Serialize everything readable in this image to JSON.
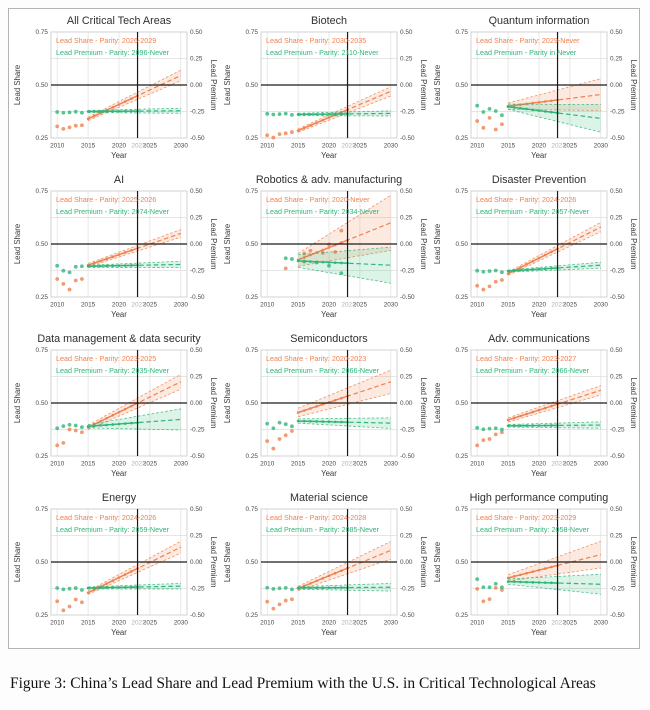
{
  "figure": {
    "caption": "Figure 3: China’s Lead Share and Lead Premium with the U.S. in Critical Technological Areas",
    "colors": {
      "share": "#ee8150",
      "premium": "#2fb579",
      "refline": "#1a1a1a",
      "grid": "#dedede",
      "plot_border": "#c8c8c8",
      "tick_text": "#4a4a4a",
      "ref_tick_text": "#b0b0b0",
      "title_text": "#2f2f2f"
    }
  },
  "axes": {
    "xlabel": "Year",
    "ylabel_left": "Lead Share",
    "ylabel_right": "Lead Premium",
    "x_ticks": [
      2010,
      2015,
      2020,
      2025,
      2030
    ],
    "x_ref_tick": 2023,
    "left_ticks": [
      [
        "0.75",
        0.75
      ],
      [
        "0.50",
        0.5
      ],
      [
        "0.25",
        0.25
      ]
    ],
    "right_ticks": [
      [
        "0.50",
        0.5
      ],
      [
        "0.25",
        0.25
      ],
      [
        "0.00",
        0.0
      ],
      [
        "-0.25",
        -0.25
      ],
      [
        "-0.50",
        -0.5
      ]
    ],
    "x_domain": [
      2009,
      2031
    ],
    "share_domain": [
      0.25,
      0.75
    ],
    "premium_domain": [
      -0.5,
      0.5
    ],
    "hline_share": 0.5,
    "vline_year": 2023,
    "minor_hgrid_share": [
      0.375,
      0.625
    ]
  },
  "chart_data": [
    {
      "type": "line",
      "title": "All Critical Tech Areas",
      "series": [
        {
          "name": "Lead Share",
          "axis": "left",
          "legend": "Lead Share - Parity: 2026-2029",
          "scatter": {
            "x": [
              2010,
              2011,
              2012,
              2013,
              2014
            ],
            "y": [
              0.305,
              0.293,
              0.3,
              0.308,
              0.31
            ]
          },
          "fit": {
            "x": [
              2015,
              2030
            ],
            "y": [
              0.34,
              0.545
            ],
            "band": [
              0.008,
              0.025
            ]
          }
        },
        {
          "name": "Lead Premium",
          "axis": "right",
          "legend": "Lead Premium - Parity: 2096-Never",
          "scatter": {
            "x": [
              2010,
              2011,
              2012,
              2013,
              2014
            ],
            "y": [
              -0.255,
              -0.262,
              -0.258,
              -0.252,
              -0.262
            ]
          },
          "fit": {
            "x": [
              2015,
              2030
            ],
            "y": [
              -0.25,
              -0.243
            ],
            "band": [
              0.01,
              0.024
            ]
          }
        }
      ]
    },
    {
      "type": "line",
      "title": "Biotech",
      "series": [
        {
          "name": "Lead Share",
          "axis": "left",
          "legend": "Lead Share - Parity: 2030-2035",
          "scatter": {
            "x": [
              2010,
              2011,
              2012,
              2013,
              2014
            ],
            "y": [
              0.263,
              0.252,
              0.268,
              0.272,
              0.278
            ]
          },
          "fit": {
            "x": [
              2015,
              2030
            ],
            "y": [
              0.285,
              0.47
            ],
            "band": [
              0.008,
              0.022
            ]
          }
        },
        {
          "name": "Lead Premium",
          "axis": "right",
          "legend": "Lead Premium - Parity: 2110-Never",
          "scatter": {
            "x": [
              2010,
              2011,
              2012,
              2013,
              2014
            ],
            "y": [
              -0.272,
              -0.278,
              -0.275,
              -0.27,
              -0.282
            ]
          },
          "fit": {
            "x": [
              2015,
              2030
            ],
            "y": [
              -0.278,
              -0.268
            ],
            "band": [
              0.012,
              0.024
            ]
          }
        }
      ]
    },
    {
      "type": "line",
      "title": "Quantum information",
      "series": [
        {
          "name": "Lead Share",
          "axis": "left",
          "legend": "Lead Share - Parity: 2029-Never",
          "scatter": {
            "x": [
              2010,
              2011,
              2012,
              2013,
              2014
            ],
            "y": [
              0.33,
              0.298,
              0.345,
              0.29,
              0.315
            ]
          },
          "fit": {
            "x": [
              2015,
              2030
            ],
            "y": [
              0.4,
              0.455
            ],
            "band": [
              0.015,
              0.075
            ]
          }
        },
        {
          "name": "Lead Premium",
          "axis": "right",
          "legend": "Lead Premium - Parity in Never",
          "scatter": {
            "x": [
              2010,
              2011,
              2012,
              2013,
              2014
            ],
            "y": [
              -0.195,
              -0.255,
              -0.225,
              -0.245,
              -0.285
            ]
          },
          "fit": {
            "x": [
              2015,
              2030
            ],
            "y": [
              -0.205,
              -0.315
            ],
            "band": [
              0.025,
              0.13
            ]
          }
        }
      ]
    },
    {
      "type": "line",
      "title": "AI",
      "series": [
        {
          "name": "Lead Share",
          "axis": "left",
          "legend": "Lead Share - Parity: 2025-2026",
          "scatter": {
            "x": [
              2010,
              2011,
              2012,
              2013,
              2014
            ],
            "y": [
              0.335,
              0.312,
              0.285,
              0.328,
              0.335
            ]
          },
          "fit": {
            "x": [
              2015,
              2030
            ],
            "y": [
              0.4,
              0.55
            ],
            "band": [
              0.008,
              0.018
            ]
          }
        },
        {
          "name": "Lead Premium",
          "axis": "right",
          "legend": "Lead Premium - Parity: 2074-Never",
          "scatter": {
            "x": [
              2010,
              2011,
              2012,
              2013,
              2014
            ],
            "y": [
              -0.205,
              -0.252,
              -0.268,
              -0.215,
              -0.21
            ]
          },
          "fit": {
            "x": [
              2015,
              2030
            ],
            "y": [
              -0.21,
              -0.193
            ],
            "band": [
              0.01,
              0.03
            ]
          }
        }
      ]
    },
    {
      "type": "line",
      "title": "Robotics & adv. manufacturing",
      "series": [
        {
          "name": "Lead Share",
          "axis": "left",
          "legend": "Lead Share - Parity: 2020-Never",
          "scatter": {
            "x": [
              2013,
              2016,
              2017,
              2019,
              2020,
              2021,
              2022
            ],
            "y": [
              0.385,
              0.455,
              0.468,
              0.458,
              0.498,
              0.462,
              0.563
            ]
          },
          "fit": {
            "x": [
              2015,
              2030
            ],
            "y": [
              0.425,
              0.6
            ],
            "band": [
              0.03,
              0.13
            ]
          }
        },
        {
          "name": "Lead Premium",
          "axis": "right",
          "legend": "Lead Premium - Parity: 2034-Never",
          "scatter": {
            "x": [
              2013,
              2014,
              2016,
              2018,
              2020,
              2022
            ],
            "y": [
              -0.135,
              -0.142,
              -0.165,
              -0.175,
              -0.205,
              -0.275
            ]
          },
          "fit": {
            "x": [
              2015,
              2030
            ],
            "y": [
              -0.16,
              -0.2
            ],
            "band": [
              0.06,
              0.17
            ]
          }
        }
      ]
    },
    {
      "type": "line",
      "title": "Disaster Prevention",
      "series": [
        {
          "name": "Lead Share",
          "axis": "left",
          "legend": "Lead Share - Parity: 2024-2026",
          "scatter": {
            "x": [
              2010,
              2011,
              2012,
              2013,
              2014
            ],
            "y": [
              0.303,
              0.285,
              0.3,
              0.322,
              0.33
            ]
          },
          "fit": {
            "x": [
              2015,
              2030
            ],
            "y": [
              0.36,
              0.58
            ],
            "band": [
              0.008,
              0.022
            ]
          }
        },
        {
          "name": "Lead Premium",
          "axis": "right",
          "legend": "Lead Premium - Parity: 2057-Never",
          "scatter": {
            "x": [
              2010,
              2011,
              2012,
              2013,
              2014
            ],
            "y": [
              -0.252,
              -0.262,
              -0.256,
              -0.25,
              -0.266
            ]
          },
          "fit": {
            "x": [
              2015,
              2030
            ],
            "y": [
              -0.255,
              -0.2
            ],
            "band": [
              0.01,
              0.028
            ]
          }
        }
      ]
    },
    {
      "type": "line",
      "title": "Data management & data security",
      "series": [
        {
          "name": "Lead Share",
          "axis": "left",
          "legend": "Lead Share - Parity: 2023-2025",
          "scatter": {
            "x": [
              2010,
              2011,
              2012,
              2013,
              2014
            ],
            "y": [
              0.3,
              0.312,
              0.375,
              0.37,
              0.362
            ]
          },
          "fit": {
            "x": [
              2015,
              2030
            ],
            "y": [
              0.385,
              0.6
            ],
            "band": [
              0.01,
              0.035
            ]
          }
        },
        {
          "name": "Lead Premium",
          "axis": "right",
          "legend": "Lead Premium - Parity: 2035-Never",
          "scatter": {
            "x": [
              2010,
              2011,
              2012,
              2013,
              2014
            ],
            "y": [
              -0.238,
              -0.218,
              -0.205,
              -0.212,
              -0.228
            ]
          },
          "fit": {
            "x": [
              2015,
              2030
            ],
            "y": [
              -0.22,
              -0.155
            ],
            "band": [
              0.015,
              0.1
            ]
          }
        }
      ]
    },
    {
      "type": "line",
      "title": "Semiconductors",
      "series": [
        {
          "name": "Lead Share",
          "axis": "left",
          "legend": "Lead Share - Parity: 2020-2023",
          "scatter": {
            "x": [
              2010,
              2011,
              2012,
              2013,
              2014
            ],
            "y": [
              0.32,
              0.285,
              0.33,
              0.348,
              0.368
            ]
          },
          "fit": {
            "x": [
              2015,
              2030
            ],
            "y": [
              0.455,
              0.6
            ],
            "band": [
              0.02,
              0.055
            ]
          }
        },
        {
          "name": "Lead Premium",
          "axis": "right",
          "legend": "Lead Premium - Parity: 2066-Never",
          "scatter": {
            "x": [
              2010,
              2011,
              2012,
              2013,
              2014
            ],
            "y": [
              -0.195,
              -0.238,
              -0.185,
              -0.2,
              -0.22
            ]
          },
          "fit": {
            "x": [
              2015,
              2030
            ],
            "y": [
              -0.17,
              -0.19
            ],
            "band": [
              0.02,
              0.05
            ]
          }
        }
      ]
    },
    {
      "type": "line",
      "title": "Adv. communications",
      "series": [
        {
          "name": "Lead Share",
          "axis": "left",
          "legend": "Lead Share - Parity: 2023-2027",
          "scatter": {
            "x": [
              2010,
              2011,
              2012,
              2013,
              2014
            ],
            "y": [
              0.3,
              0.325,
              0.33,
              0.352,
              0.362
            ]
          },
          "fit": {
            "x": [
              2015,
              2030
            ],
            "y": [
              0.42,
              0.56
            ],
            "band": [
              0.01,
              0.022
            ]
          }
        },
        {
          "name": "Lead Premium",
          "axis": "right",
          "legend": "Lead Premium - Parity: 2066-Never",
          "scatter": {
            "x": [
              2010,
              2011,
              2012,
              2013,
              2014
            ],
            "y": [
              -0.235,
              -0.248,
              -0.242,
              -0.238,
              -0.25
            ]
          },
          "fit": {
            "x": [
              2015,
              2030
            ],
            "y": [
              -0.215,
              -0.208
            ],
            "band": [
              0.012,
              0.03
            ]
          }
        }
      ]
    },
    {
      "type": "line",
      "title": "Energy",
      "series": [
        {
          "name": "Lead Share",
          "axis": "left",
          "legend": "Lead Share - Parity: 2024-2026",
          "scatter": {
            "x": [
              2010,
              2011,
              2012,
              2013,
              2014
            ],
            "y": [
              0.315,
              0.272,
              0.29,
              0.323,
              0.31
            ]
          },
          "fit": {
            "x": [
              2015,
              2030
            ],
            "y": [
              0.355,
              0.57
            ],
            "band": [
              0.008,
              0.028
            ]
          }
        },
        {
          "name": "Lead Premium",
          "axis": "right",
          "legend": "Lead Premium - Parity: 2059-Never",
          "scatter": {
            "x": [
              2010,
              2011,
              2012,
              2013,
              2014
            ],
            "y": [
              -0.245,
              -0.258,
              -0.252,
              -0.246,
              -0.264
            ]
          },
          "fit": {
            "x": [
              2015,
              2030
            ],
            "y": [
              -0.245,
              -0.228
            ],
            "band": [
              0.01,
              0.026
            ]
          }
        }
      ]
    },
    {
      "type": "line",
      "title": "Material science",
      "series": [
        {
          "name": "Lead Share",
          "axis": "left",
          "legend": "Lead Share - Parity: 2024-2028",
          "scatter": {
            "x": [
              2010,
              2011,
              2012,
              2013,
              2014
            ],
            "y": [
              0.313,
              0.28,
              0.3,
              0.318,
              0.324
            ]
          },
          "fit": {
            "x": [
              2015,
              2030
            ],
            "y": [
              0.375,
              0.555
            ],
            "band": [
              0.01,
              0.042
            ]
          }
        },
        {
          "name": "Lead Premium",
          "axis": "right",
          "legend": "Lead Premium - Parity: 2085-Never",
          "scatter": {
            "x": [
              2010,
              2011,
              2012,
              2013,
              2014
            ],
            "y": [
              -0.243,
              -0.254,
              -0.248,
              -0.244,
              -0.258
            ]
          },
          "fit": {
            "x": [
              2015,
              2030
            ],
            "y": [
              -0.245,
              -0.238
            ],
            "band": [
              0.012,
              0.036
            ]
          }
        }
      ]
    },
    {
      "type": "line",
      "title": "High performance computing",
      "series": [
        {
          "name": "Lead Share",
          "axis": "left",
          "legend": "Lead Share - Parity: 2023-2029",
          "scatter": {
            "x": [
              2010,
              2011,
              2012,
              2013,
              2014
            ],
            "y": [
              0.373,
              0.315,
              0.325,
              0.378,
              0.368
            ]
          },
          "fit": {
            "x": [
              2015,
              2030
            ],
            "y": [
              0.425,
              0.535
            ],
            "band": [
              0.015,
              0.063
            ]
          }
        },
        {
          "name": "Lead Premium",
          "axis": "right",
          "legend": "Lead Premium - Parity: 2058-Never",
          "scatter": {
            "x": [
              2010,
              2011,
              2012,
              2013,
              2014
            ],
            "y": [
              -0.162,
              -0.238,
              -0.238,
              -0.205,
              -0.238
            ]
          },
          "fit": {
            "x": [
              2015,
              2030
            ],
            "y": [
              -0.185,
              -0.21
            ],
            "band": [
              0.025,
              0.094
            ]
          }
        }
      ]
    }
  ]
}
